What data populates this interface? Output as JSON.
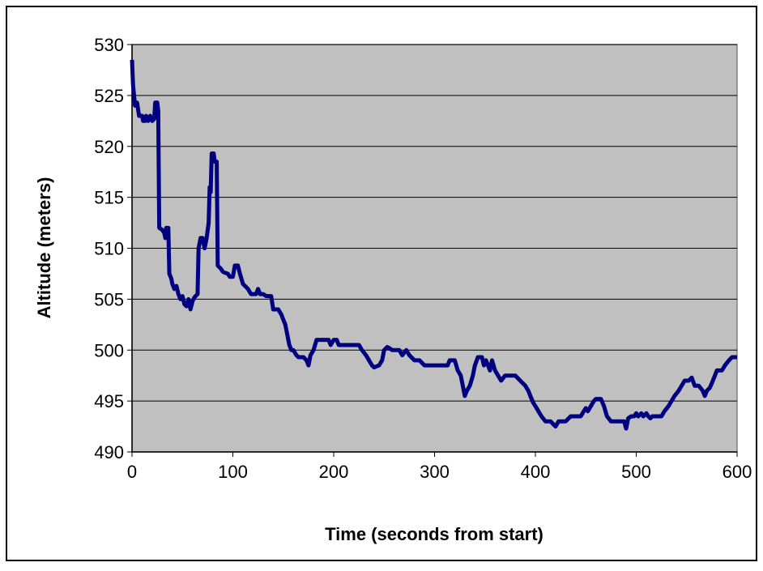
{
  "chart_data": {
    "type": "line",
    "x_label": "Time (seconds from start)",
    "y_label": "Altitude (meters)",
    "x": [
      0,
      1,
      3,
      5,
      7,
      10,
      11,
      13,
      14,
      16,
      18,
      20,
      22,
      23,
      25,
      26,
      27,
      30,
      32,
      33,
      34,
      36,
      37,
      39,
      40,
      42,
      44,
      46,
      48,
      50,
      52,
      54,
      56,
      58,
      60,
      62,
      65,
      66,
      68,
      70,
      72,
      74,
      76,
      77,
      78,
      79,
      81,
      82,
      84,
      85,
      88,
      90,
      92,
      95,
      97,
      100,
      102,
      105,
      107,
      110,
      115,
      118,
      120,
      123,
      125,
      127,
      130,
      133,
      138,
      140,
      145,
      148,
      150,
      152,
      154,
      156,
      158,
      160,
      163,
      165,
      170,
      173,
      175,
      177,
      180,
      183,
      190,
      195,
      197,
      200,
      203,
      205,
      215,
      225,
      228,
      232,
      235,
      238,
      240,
      245,
      248,
      250,
      253,
      255,
      258,
      265,
      268,
      272,
      275,
      280,
      285,
      290,
      300,
      310,
      313,
      315,
      320,
      323,
      326,
      328,
      330,
      332,
      335,
      338,
      340,
      343,
      347,
      349,
      351,
      353,
      355,
      357,
      360,
      363,
      366,
      370,
      380,
      385,
      390,
      393,
      395,
      398,
      400,
      403,
      406,
      410,
      415,
      420,
      423,
      430,
      435,
      440,
      445,
      448,
      450,
      452,
      455,
      458,
      460,
      465,
      468,
      471,
      475,
      480,
      488,
      490,
      492,
      495,
      498,
      500,
      502,
      505,
      507,
      510,
      512,
      514,
      516,
      520,
      525,
      528,
      532,
      535,
      538,
      542,
      545,
      548,
      552,
      555,
      558,
      562,
      566,
      568,
      570,
      573,
      576,
      580,
      585,
      588,
      592,
      595,
      600
    ],
    "series": [
      {
        "color": "#000080",
        "values": [
          528.5,
          526,
          524,
          524.3,
          523,
          523,
          522.5,
          522.5,
          523,
          522.5,
          523,
          522.5,
          522.7,
          524.3,
          524.3,
          523.5,
          512,
          511.8,
          511.5,
          511,
          512,
          512,
          507.5,
          507,
          506.5,
          506,
          506.3,
          505.5,
          505,
          505.3,
          504.5,
          504.3,
          505,
          504,
          504.8,
          505.2,
          505.5,
          510,
          511,
          511,
          510,
          511,
          512.5,
          516,
          515.5,
          519.3,
          519.3,
          518.5,
          518.5,
          508.3,
          508,
          507.7,
          507.6,
          507.5,
          507.2,
          507.2,
          508.3,
          508.3,
          507.5,
          506.5,
          506,
          505.5,
          505.5,
          505.5,
          506,
          505.5,
          505.5,
          505.3,
          505.3,
          504,
          504,
          503.5,
          503,
          502.5,
          501.5,
          500.5,
          500,
          500,
          499.5,
          499.3,
          499.3,
          499,
          498.5,
          499.5,
          500,
          501,
          501,
          501,
          500.5,
          501,
          501,
          500.5,
          500.5,
          500.5,
          500,
          499.5,
          499,
          498.5,
          498.3,
          498.5,
          499,
          500,
          500.3,
          500.2,
          500,
          500,
          499.5,
          500,
          499.5,
          499,
          499,
          498.5,
          498.5,
          498.5,
          498.5,
          499,
          499,
          498,
          497.5,
          496.5,
          495.5,
          496,
          496.5,
          497.5,
          498.5,
          499.3,
          499.3,
          498.5,
          499,
          498.5,
          498,
          499,
          498,
          497.5,
          497,
          497.5,
          497.5,
          497,
          496.5,
          496,
          495.5,
          494.8,
          494.5,
          494,
          493.5,
          493,
          493,
          492.5,
          493,
          493,
          493.5,
          493.5,
          493.5,
          494,
          494.3,
          494,
          494.5,
          495,
          495.2,
          495.2,
          494.5,
          493.5,
          493,
          493,
          493,
          492.3,
          493.3,
          493.5,
          493.5,
          493.8,
          493.5,
          493.8,
          493.5,
          493.8,
          493.5,
          493.3,
          493.5,
          493.5,
          493.5,
          494,
          494.5,
          495,
          495.5,
          496,
          496.5,
          497,
          497,
          497.3,
          496.5,
          496.5,
          496,
          495.5,
          496,
          496.3,
          497,
          498,
          498,
          498.5,
          499,
          499.3,
          499.3
        ]
      }
    ],
    "xlim": [
      0,
      600
    ],
    "xticks": [
      0,
      100,
      200,
      300,
      400,
      500,
      600
    ],
    "ylim": [
      490,
      530
    ],
    "yticks": [
      490,
      495,
      500,
      505,
      510,
      515,
      520,
      525,
      530
    ],
    "grid": true,
    "plot_background": "#c0c0c0"
  }
}
